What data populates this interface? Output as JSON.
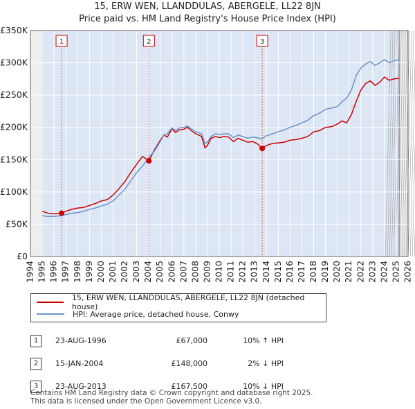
{
  "header": {
    "title_line1": "15, ERW WEN, LLANDDULAS, ABERGELE, LL22 8JN",
    "title_line2": "Price paid vs. HM Land Registry's House Price Index (HPI)"
  },
  "chart_data": {
    "type": "line",
    "title": "15, ERW WEN, LLANDDULAS, ABERGELE, LL22 8JN — Price paid vs. HM Land Registry's House Price Index (HPI)",
    "xlabel": "",
    "ylabel": "",
    "xlim": [
      1994,
      2026
    ],
    "ylim": [
      0,
      350000
    ],
    "y_ticks": [
      0,
      50000,
      100000,
      150000,
      200000,
      250000,
      300000,
      350000
    ],
    "y_tick_labels": [
      "£0",
      "£50K",
      "£100K",
      "£150K",
      "£200K",
      "£250K",
      "£300K",
      "£350K"
    ],
    "x_ticks": [
      1994,
      1995,
      1996,
      1997,
      1998,
      1999,
      2000,
      2001,
      2002,
      2003,
      2004,
      2005,
      2006,
      2007,
      2008,
      2009,
      2010,
      2011,
      2012,
      2013,
      2014,
      2015,
      2016,
      2017,
      2018,
      2019,
      2020,
      2021,
      2022,
      2023,
      2024,
      2025,
      2026
    ],
    "x_tick_labels": [
      "1994",
      "1995",
      "1996",
      "1997",
      "1998",
      "1999",
      "2000",
      "2001",
      "2002",
      "2003",
      "2004",
      "2005",
      "2006",
      "2007",
      "2008",
      "2009",
      "2010",
      "2011",
      "2012",
      "2013",
      "2014",
      "2015",
      "2016",
      "2017",
      "2018",
      "2019",
      "2020",
      "2021",
      "2022",
      "2023",
      "2024",
      "2025",
      "2026"
    ],
    "data_range": [
      1995.0,
      2025.25
    ],
    "series": [
      {
        "name": "15, ERW WEN, LLANDDULAS, ABERGELE, LL22 8JN (detached house)",
        "color": "#cc0000",
        "x": [
          1995.0,
          1995.5,
          1996.0,
          1996.64,
          1997.0,
          1997.5,
          1998.0,
          1998.5,
          1999.0,
          1999.5,
          2000.0,
          2000.5,
          2001.0,
          2001.5,
          2002.0,
          2002.5,
          2003.0,
          2003.5,
          2004.04,
          2004.5,
          2005.0,
          2005.3,
          2005.6,
          2006.0,
          2006.3,
          2006.6,
          2007.0,
          2007.3,
          2007.7,
          2008.0,
          2008.5,
          2008.8,
          2009.0,
          2009.3,
          2009.7,
          2010.0,
          2010.4,
          2010.8,
          2011.2,
          2011.6,
          2012.0,
          2012.4,
          2012.8,
          2013.2,
          2013.64,
          2014.0,
          2014.5,
          2015.0,
          2015.5,
          2016.0,
          2016.5,
          2017.0,
          2017.5,
          2018.0,
          2018.5,
          2019.0,
          2019.5,
          2020.0,
          2020.4,
          2020.8,
          2021.2,
          2021.6,
          2022.0,
          2022.4,
          2022.8,
          2023.2,
          2023.6,
          2024.0,
          2024.4,
          2024.8,
          2025.25
        ],
        "y": [
          70000,
          67000,
          66000,
          67000,
          70000,
          73000,
          75000,
          76000,
          79000,
          82000,
          86000,
          88000,
          95000,
          105000,
          116000,
          130000,
          143000,
          155000,
          148000,
          165000,
          180000,
          188000,
          185000,
          198000,
          192000,
          196000,
          197000,
          200000,
          194000,
          190000,
          186000,
          168000,
          172000,
          183000,
          186000,
          184000,
          186000,
          185000,
          178000,
          183000,
          180000,
          177000,
          178000,
          175000,
          167500,
          172000,
          175000,
          176000,
          177000,
          180000,
          181000,
          183000,
          186000,
          193000,
          195000,
          200000,
          201000,
          205000,
          210000,
          207000,
          220000,
          240000,
          258000,
          268000,
          272000,
          265000,
          270000,
          278000,
          273000,
          275000,
          276000
        ]
      },
      {
        "name": "HPI: Average price, detached house, Conwy",
        "color": "#6a93c8",
        "x": [
          1995.0,
          1995.5,
          1996.0,
          1996.5,
          1997.0,
          1997.5,
          1998.0,
          1998.5,
          1999.0,
          1999.5,
          2000.0,
          2000.5,
          2001.0,
          2001.5,
          2002.0,
          2002.5,
          2003.0,
          2003.5,
          2004.0,
          2004.5,
          2005.0,
          2005.3,
          2005.6,
          2006.0,
          2006.3,
          2006.6,
          2007.0,
          2007.3,
          2007.7,
          2008.0,
          2008.5,
          2008.8,
          2009.0,
          2009.3,
          2009.7,
          2010.0,
          2010.4,
          2010.8,
          2011.2,
          2011.6,
          2012.0,
          2012.4,
          2012.8,
          2013.2,
          2013.6,
          2014.0,
          2014.5,
          2015.0,
          2015.5,
          2016.0,
          2016.5,
          2017.0,
          2017.5,
          2018.0,
          2018.5,
          2019.0,
          2019.5,
          2020.0,
          2020.4,
          2020.8,
          2021.2,
          2021.6,
          2022.0,
          2022.4,
          2022.8,
          2023.2,
          2023.6,
          2024.0,
          2024.4,
          2024.8,
          2025.25
        ],
        "y": [
          63000,
          62000,
          62000,
          63000,
          65000,
          67000,
          68000,
          70000,
          73000,
          75000,
          78000,
          81000,
          86000,
          95000,
          104000,
          117000,
          130000,
          140000,
          153000,
          163000,
          178000,
          188000,
          190000,
          199000,
          195000,
          199000,
          200000,
          202000,
          197000,
          193000,
          190000,
          175000,
          177000,
          186000,
          190000,
          189000,
          190000,
          190000,
          184000,
          188000,
          186000,
          183000,
          185000,
          184000,
          182000,
          187000,
          190000,
          193000,
          196000,
          200000,
          203000,
          207000,
          211000,
          218000,
          222000,
          228000,
          230000,
          232000,
          240000,
          245000,
          258000,
          280000,
          292000,
          298000,
          302000,
          296000,
          300000,
          305000,
          300000,
          303000,
          305000
        ]
      }
    ],
    "sales": [
      {
        "label": "1",
        "x": 1996.64,
        "y": 67000
      },
      {
        "label": "2",
        "x": 2004.04,
        "y": 148000
      },
      {
        "label": "3",
        "x": 2013.64,
        "y": 167500
      }
    ]
  },
  "legend": {
    "items": [
      {
        "label": "15, ERW WEN, LLANDDULAS, ABERGELE, LL22 8JN (detached house)",
        "color": "#cc0000"
      },
      {
        "label": "HPI: Average price, detached house, Conwy",
        "color": "#6a93c8"
      }
    ]
  },
  "sales_table": {
    "rows": [
      {
        "num": "1",
        "date": "23-AUG-1996",
        "price": "£67,000",
        "hpi": "10% ↑ HPI"
      },
      {
        "num": "2",
        "date": "15-JAN-2004",
        "price": "£148,000",
        "hpi": "2% ↓ HPI"
      },
      {
        "num": "3",
        "date": "23-AUG-2013",
        "price": "£167,500",
        "hpi": "10% ↓ HPI"
      }
    ]
  },
  "footer": {
    "line1": "Contains HM Land Registry data © Crown copyright and database right 2025.",
    "line2": "This data is licensed under the Open Government Licence v3.0."
  }
}
